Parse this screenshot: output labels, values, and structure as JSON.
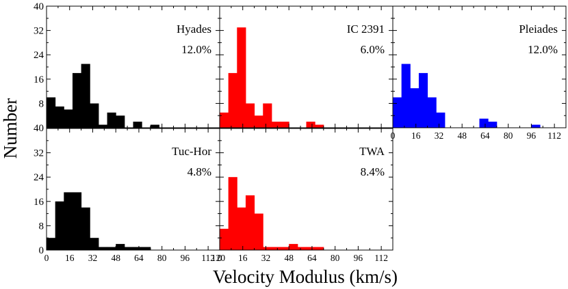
{
  "chart_data": {
    "type": "bar",
    "xlabel": "Velocity Modulus (km/s)",
    "ylabel": "Number",
    "bin_width": 6,
    "xlim": [
      0,
      120
    ],
    "ylim": [
      0,
      40
    ],
    "x_ticks": [
      0,
      16,
      32,
      48,
      64,
      80,
      96,
      112
    ],
    "x_tick_labels": [
      "0",
      "16",
      "32",
      "48",
      "64",
      "80",
      "96",
      "112"
    ],
    "y_ticks": [
      0,
      8,
      16,
      24,
      32,
      40
    ],
    "y_tick_labels_top_row": [
      "40",
      "8",
      "16",
      "24",
      "32",
      "40"
    ],
    "y_tick_labels_bottom_row": [
      "0",
      "8",
      "16",
      "24",
      "32"
    ],
    "last_x_tick_label_bottom_row": "120",
    "panels": [
      {
        "name": "Hyades",
        "percent": "12.0%",
        "color": "#000000",
        "row": 0,
        "col": 0,
        "bin_starts": [
          0,
          6,
          12,
          18,
          24,
          30,
          36,
          42,
          48,
          54,
          60,
          66,
          72,
          78,
          84,
          90,
          96,
          102
        ],
        "values": [
          10,
          7,
          6,
          18,
          21,
          8,
          1,
          5,
          4,
          0,
          2,
          0,
          1
        ]
      },
      {
        "name": "IC 2391",
        "percent": "6.0%",
        "color": "#ff0000",
        "row": 0,
        "col": 1,
        "values": [
          5,
          18,
          33,
          8,
          4,
          8,
          2,
          2,
          0,
          0,
          2,
          1
        ]
      },
      {
        "name": "Pleiades",
        "percent": "12.0%",
        "color": "#0000ff",
        "row": 0,
        "col": 2,
        "values": [
          10,
          21,
          13,
          18,
          10,
          5,
          0,
          0,
          0,
          0,
          3,
          2,
          0,
          0,
          0,
          0,
          1
        ]
      },
      {
        "name": "Tuc-Hor",
        "percent": "4.8%",
        "color": "#000000",
        "row": 1,
        "col": 0,
        "values": [
          4,
          16,
          19,
          19,
          14,
          4,
          1,
          1,
          2,
          1,
          1,
          1
        ]
      },
      {
        "name": "TWA",
        "percent": "8.4%",
        "color": "#ff0000",
        "row": 1,
        "col": 1,
        "values": [
          7,
          24,
          14,
          18,
          12,
          1,
          1,
          1,
          2,
          1,
          1,
          1
        ]
      }
    ]
  }
}
